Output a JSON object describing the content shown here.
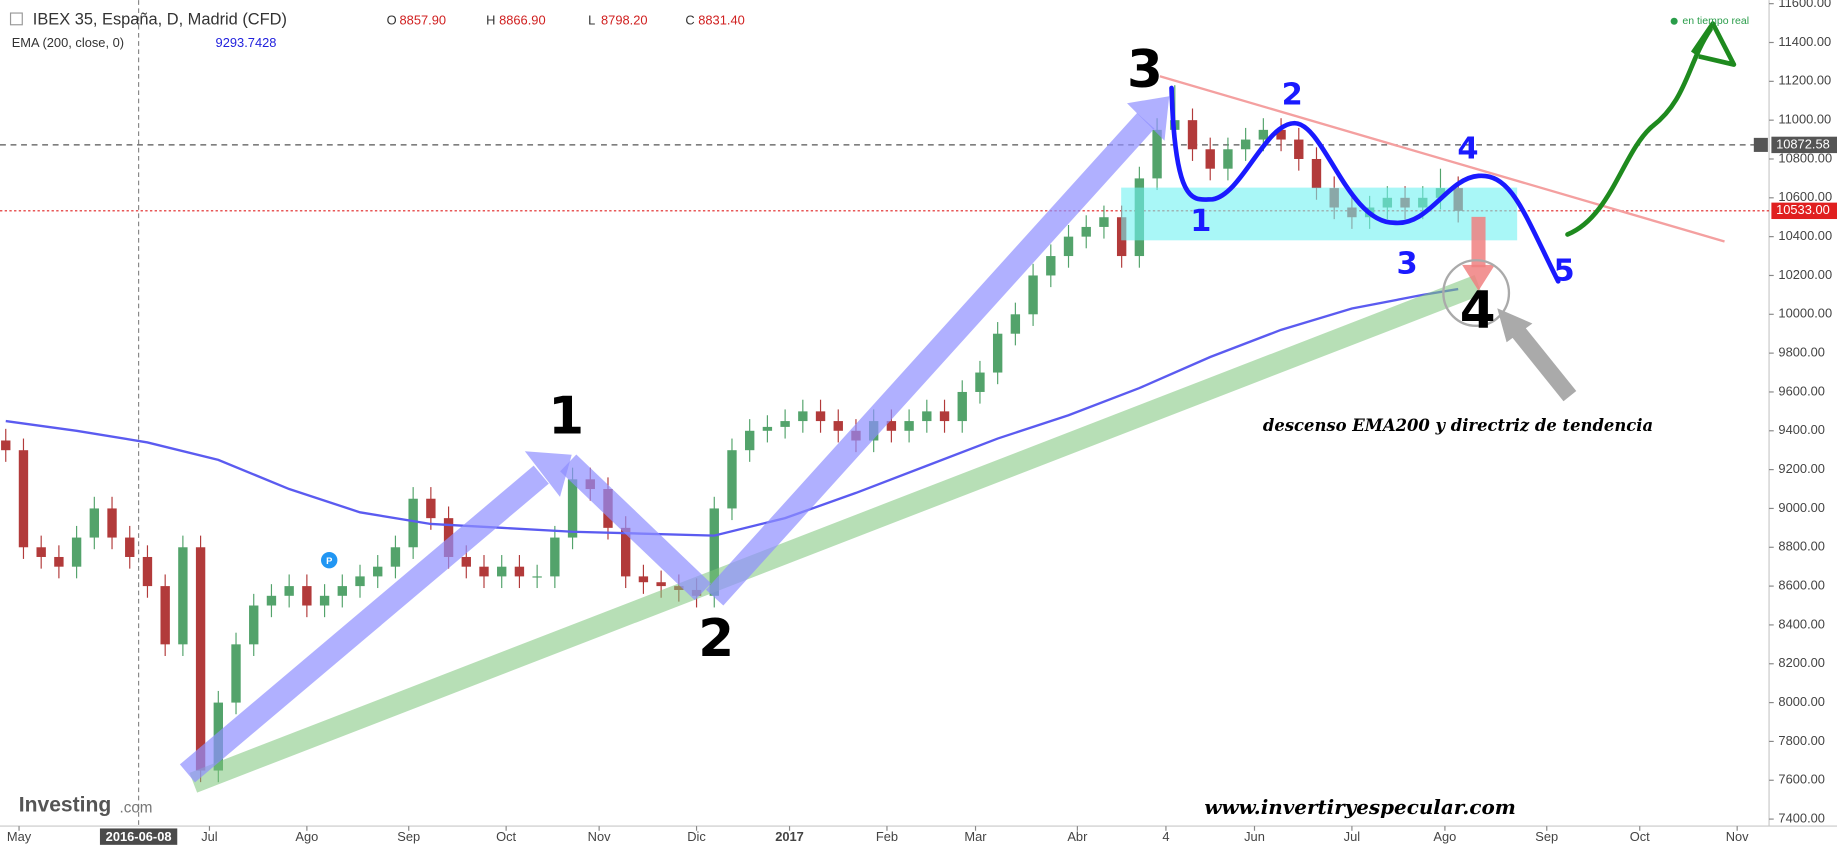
{
  "chart_data": {
    "type": "candlestick",
    "title": "IBEX 35, España, D, Madrid (CFD)",
    "ohlc_legend": [
      {
        "label": "O",
        "value": "8857.90"
      },
      {
        "label": "H",
        "value": "8866.90"
      },
      {
        "label": "L",
        "value": "8798.20"
      },
      {
        "label": "C",
        "value": "8831.40"
      }
    ],
    "indicator": {
      "label": "EMA (200, close, 0)",
      "value_label": "9293.7428"
    },
    "x": [
      0,
      4,
      8,
      12,
      16,
      20,
      24,
      28,
      32,
      36,
      40,
      44,
      48,
      52,
      56,
      60,
      64,
      68,
      72,
      76,
      80,
      84,
      88,
      92,
      96,
      100,
      104,
      108,
      112,
      116,
      120,
      124,
      128,
      132,
      136,
      140,
      144,
      148,
      152,
      156,
      160,
      164,
      168,
      172,
      176,
      180,
      184,
      188,
      192,
      196,
      200,
      204,
      208,
      212,
      216,
      220,
      224,
      228,
      232,
      236,
      240,
      244,
      248,
      252,
      256,
      260,
      264,
      268,
      272,
      276,
      280,
      284,
      288,
      292,
      296,
      300,
      304,
      308,
      312,
      316,
      320,
      324,
      328
    ],
    "open": [
      9350,
      9300,
      8800,
      8750,
      8700,
      8850,
      9000,
      8850,
      8750,
      8600,
      8300,
      8800,
      7650,
      8000,
      8300,
      8500,
      8550,
      8600,
      8500,
      8550,
      8600,
      8650,
      8700,
      8800,
      9050,
      8950,
      8750,
      8700,
      8650,
      8700,
      8650,
      8650,
      8850,
      9150,
      9100,
      8900,
      8650,
      8620,
      8600,
      8580,
      8550,
      9000,
      9300,
      9400,
      9420,
      9450,
      9500,
      9450,
      9400,
      9350,
      9450,
      9400,
      9450,
      9500,
      9450,
      9600,
      9700,
      9900,
      10000,
      10200,
      10300,
      10400,
      10450,
      10500,
      10300,
      10700,
      10950,
      11000,
      10850,
      10750,
      10850,
      10900,
      10950,
      10900,
      10800,
      10650,
      10550,
      10500,
      10550,
      10600,
      10550,
      10600,
      10650
    ],
    "high": [
      9410,
      9360,
      8860,
      8810,
      8910,
      9060,
      9060,
      8910,
      8810,
      8660,
      8860,
      8860,
      8060,
      8360,
      8560,
      8610,
      8660,
      8660,
      8610,
      8660,
      8710,
      8760,
      8860,
      9110,
      9110,
      9010,
      8810,
      8760,
      8760,
      8760,
      8710,
      8910,
      9210,
      9210,
      9160,
      8960,
      8710,
      8680,
      8660,
      8640,
      9060,
      9360,
      9460,
      9480,
      9510,
      9560,
      9560,
      9510,
      9460,
      9510,
      9510,
      9510,
      9560,
      9560,
      9660,
      9760,
      9960,
      10060,
      10260,
      10360,
      10460,
      10510,
      10560,
      10560,
      10760,
      11010,
      11180,
      11060,
      10910,
      10910,
      10960,
      11010,
      11010,
      10960,
      10860,
      10710,
      10610,
      10610,
      10660,
      10660,
      10660,
      10750,
      10710
    ],
    "low": [
      9240,
      8740,
      8690,
      8640,
      8640,
      8790,
      8790,
      8690,
      8540,
      8240,
      8240,
      7590,
      7590,
      7940,
      8240,
      8440,
      8490,
      8440,
      8440,
      8490,
      8540,
      8590,
      8640,
      8740,
      8890,
      8690,
      8640,
      8590,
      8590,
      8590,
      8590,
      8590,
      8790,
      9040,
      8840,
      8590,
      8560,
      8540,
      8520,
      8490,
      8490,
      8940,
      9240,
      9340,
      9360,
      9390,
      9390,
      9340,
      9290,
      9290,
      9340,
      9340,
      9390,
      9390,
      9390,
      9540,
      9640,
      9840,
      9940,
      10140,
      10240,
      10340,
      10390,
      10240,
      10240,
      10640,
      10890,
      10790,
      10690,
      10690,
      10790,
      10840,
      10840,
      10740,
      10590,
      10490,
      10440,
      10440,
      10490,
      10490,
      10490,
      10540,
      10473
    ],
    "close": [
      9300,
      8800,
      8750,
      8700,
      8850,
      9000,
      8850,
      8750,
      8600,
      8300,
      8800,
      7650,
      8000,
      8300,
      8500,
      8550,
      8600,
      8500,
      8550,
      8600,
      8650,
      8700,
      8800,
      9050,
      8950,
      8750,
      8700,
      8650,
      8700,
      8650,
      8650,
      8850,
      9150,
      9100,
      8900,
      8650,
      8620,
      8600,
      8580,
      8550,
      9000,
      9300,
      9400,
      9420,
      9450,
      9500,
      9450,
      9400,
      9350,
      9450,
      9400,
      9450,
      9500,
      9450,
      9600,
      9700,
      9900,
      10000,
      10200,
      10300,
      10400,
      10450,
      10500,
      10300,
      10700,
      10950,
      11000,
      10850,
      10750,
      10850,
      10900,
      10950,
      10900,
      10800,
      10650,
      10550,
      10500,
      10550,
      10600,
      10550,
      10600,
      10650,
      10533
    ],
    "up_color": "#53a36b",
    "down_color": "#b23a3a",
    "ema": {
      "x": [
        0,
        16,
        32,
        48,
        64,
        80,
        96,
        112,
        128,
        144,
        160,
        176,
        192,
        208,
        224,
        240,
        256,
        272,
        288,
        304,
        320,
        328
      ],
      "values": [
        9450,
        9400,
        9340,
        9250,
        9100,
        8980,
        8920,
        8900,
        8880,
        8870,
        8860,
        8950,
        9080,
        9220,
        9360,
        9480,
        9620,
        9780,
        9920,
        10030,
        10100,
        10130
      ],
      "color": "#5b5bf0"
    },
    "xlim": [
      -1.3,
      398.2
    ],
    "ylim": [
      7400,
      11600
    ],
    "xticks": [
      {
        "value": 3,
        "label": "May"
      },
      {
        "value": 46,
        "label": "Jul"
      },
      {
        "value": 68,
        "label": "Ago"
      },
      {
        "value": 91,
        "label": "Sep"
      },
      {
        "value": 113,
        "label": "Oct"
      },
      {
        "value": 134,
        "label": "Nov"
      },
      {
        "value": 156,
        "label": "Dic"
      },
      {
        "value": 177,
        "label": "2017"
      },
      {
        "value": 199,
        "label": "Feb"
      },
      {
        "value": 219,
        "label": "Mar"
      },
      {
        "value": 242,
        "label": "Abr"
      },
      {
        "value": 262,
        "label": "4"
      },
      {
        "value": 282,
        "label": "Jun"
      },
      {
        "value": 304,
        "label": "Jul"
      },
      {
        "value": 325,
        "label": "Ago"
      },
      {
        "value": 348,
        "label": "Sep"
      },
      {
        "value": 369,
        "label": "Oct"
      },
      {
        "value": 391,
        "label": "Nov"
      }
    ],
    "yticks": [
      {
        "value": 7400,
        "label": "7400.00"
      },
      {
        "value": 7600,
        "label": "7600.00"
      },
      {
        "value": 7800,
        "label": "7800.00"
      },
      {
        "value": 8000,
        "label": "8000.00"
      },
      {
        "value": 8200,
        "label": "8200.00"
      },
      {
        "value": 8400,
        "label": "8400.00"
      },
      {
        "value": 8600,
        "label": "8600.00"
      },
      {
        "value": 8800,
        "label": "8800.00"
      },
      {
        "value": 9000,
        "label": "9000.00"
      },
      {
        "value": 9200,
        "label": "9200.00"
      },
      {
        "value": 9400,
        "label": "9400.00"
      },
      {
        "value": 9600,
        "label": "9600.00"
      },
      {
        "value": 9800,
        "label": "9800.00"
      },
      {
        "value": 10000,
        "label": "10000.00"
      },
      {
        "value": 10200,
        "label": "10200.00"
      },
      {
        "value": 10400,
        "label": "10400.00"
      },
      {
        "value": 10600,
        "label": "10600.00"
      },
      {
        "value": 10800,
        "label": "10800.00"
      },
      {
        "value": 11000,
        "label": "11000.00"
      },
      {
        "value": 11200,
        "label": "11200.00"
      },
      {
        "value": 11400,
        "label": "11400.00"
      },
      {
        "value": 11600,
        "label": "11600.00"
      }
    ],
    "crosshair": {
      "value": 30,
      "label": "2016-06-08"
    },
    "price_lines": [
      {
        "value": 10872.58,
        "label": "10872.58",
        "color": "#555555"
      },
      {
        "value": 10533,
        "label": "10533.00",
        "color": "#e02020"
      }
    ],
    "status": "en tiempo real",
    "logo": [
      "Investing",
      ".com"
    ],
    "watermark": "www.invertiryespecular.com",
    "annotation": "descenso EMA200 y directriz de tendencia",
    "handwritten_black": [
      "1",
      "2",
      "3",
      "4"
    ],
    "handwritten_blue": [
      "1",
      "2",
      "3",
      "4",
      "5"
    ]
  }
}
